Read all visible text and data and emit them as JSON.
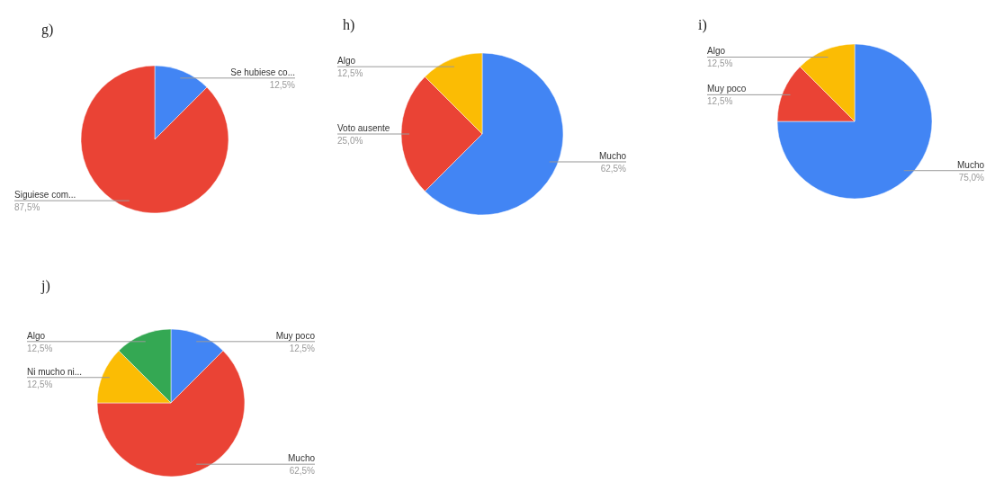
{
  "chart_data": [
    {
      "type": "pie",
      "title": "g)",
      "categories": [
        "Se hubiese co...",
        "Siguiese com..."
      ],
      "values": [
        12.5,
        87.5
      ],
      "colors": [
        "#4285f4",
        "#ea4335"
      ],
      "value_labels": [
        "12,5%",
        "87,5%"
      ]
    },
    {
      "type": "pie",
      "title": "h)",
      "categories": [
        "Mucho",
        "Voto ausente",
        "Algo"
      ],
      "values": [
        62.5,
        25.0,
        12.5
      ],
      "colors": [
        "#4285f4",
        "#ea4335",
        "#fbbc04"
      ],
      "value_labels": [
        "62,5%",
        "25,0%",
        "12,5%"
      ]
    },
    {
      "type": "pie",
      "title": "i)",
      "categories": [
        "Mucho",
        "Muy poco",
        "Algo"
      ],
      "values": [
        75.0,
        12.5,
        12.5
      ],
      "colors": [
        "#4285f4",
        "#ea4335",
        "#fbbc04"
      ],
      "value_labels": [
        "75,0%",
        "12,5%",
        "12,5%"
      ]
    },
    {
      "type": "pie",
      "title": "j)",
      "categories": [
        "Muy poco",
        "Mucho",
        "Ni mucho ni...",
        "Algo"
      ],
      "values": [
        12.5,
        62.5,
        12.5,
        12.5
      ],
      "colors": [
        "#4285f4",
        "#ea4335",
        "#fbbc04",
        "#34a853"
      ],
      "value_labels": [
        "12,5%",
        "62,5%",
        "12,5%",
        "12,5%"
      ]
    }
  ]
}
